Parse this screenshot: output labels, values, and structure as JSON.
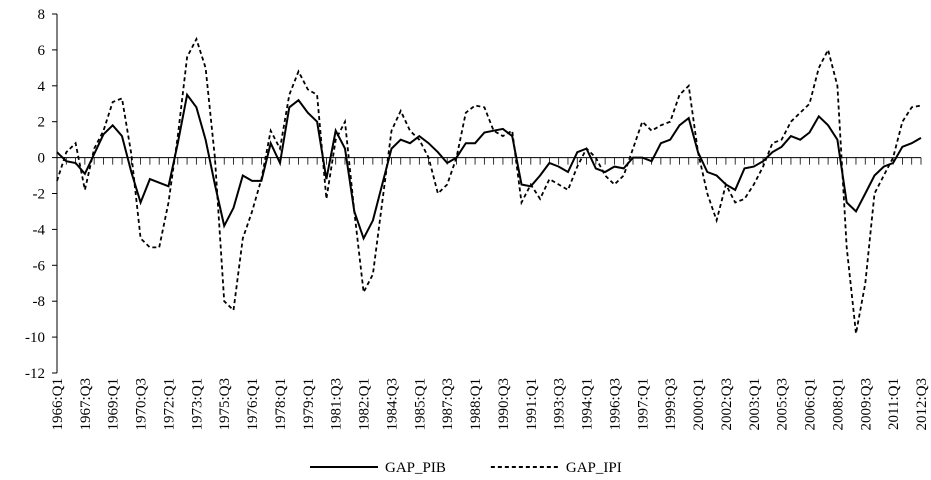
{
  "chart_data": {
    "type": "line",
    "categories": [
      "1966:Q1",
      null,
      null,
      "1967:Q3",
      null,
      null,
      "1969:Q1",
      null,
      null,
      "1970:Q3",
      null,
      null,
      "1972:Q1",
      null,
      null,
      "1973:Q1",
      null,
      null,
      "1975:Q3",
      null,
      null,
      "1976:Q1",
      null,
      null,
      "1978:Q1",
      null,
      null,
      "1979:Q1",
      null,
      null,
      "1981:Q3",
      null,
      null,
      "1982:Q1",
      null,
      null,
      "1984:Q3",
      null,
      null,
      "1985:Q1",
      null,
      null,
      "1987:Q3",
      null,
      null,
      "1988:Q1",
      null,
      null,
      "1990:Q3",
      null,
      null,
      "1991:Q1",
      null,
      null,
      "1993:Q3",
      null,
      null,
      "1994:Q1",
      null,
      null,
      "1996:Q3",
      null,
      null,
      "1997:Q1",
      null,
      null,
      "1999:Q3",
      null,
      null,
      "2000:Q1",
      null,
      null,
      "2002:Q3",
      null,
      null,
      "2003:Q1",
      null,
      null,
      "2005:Q3",
      null,
      null,
      "2006:Q1",
      null,
      null,
      "2008:Q1",
      null,
      null,
      "2009:Q3",
      null,
      null,
      "2011:Q1",
      null,
      null,
      "2012:Q3"
    ],
    "series": [
      {
        "name": "GAP_PIB",
        "color": "#000000",
        "dash": "solid",
        "values": [
          0.3,
          -0.2,
          -0.3,
          -0.9,
          0.2,
          1.3,
          1.8,
          1.2,
          -0.8,
          -2.5,
          -1.2,
          -1.4,
          -1.6,
          0.8,
          3.5,
          2.8,
          1.0,
          -1.5,
          -3.8,
          -2.8,
          -1.0,
          -1.3,
          -1.3,
          0.8,
          -0.3,
          2.8,
          3.2,
          2.5,
          2.0,
          -1.2,
          1.5,
          0.5,
          -3.0,
          -4.5,
          -3.5,
          -1.5,
          0.5,
          1.0,
          0.8,
          1.2,
          0.8,
          0.3,
          -0.3,
          0,
          0.8,
          0.8,
          1.4,
          1.5,
          1.6,
          1.2,
          -1.5,
          -1.6,
          -1.0,
          -0.3,
          -0.5,
          -0.8,
          0.3,
          0.5,
          -0.6,
          -0.8,
          -0.5,
          -0.6,
          0,
          0,
          -0.2,
          0.8,
          1.0,
          1.8,
          2.2,
          0.3,
          -0.8,
          -1.0,
          -1.5,
          -1.8,
          -0.6,
          -0.5,
          -0.2,
          0.3,
          0.6,
          1.2,
          1.0,
          1.4,
          2.3,
          1.8,
          1.0,
          -2.5,
          -3.0,
          -2.0,
          -1.0,
          -0.5,
          -0.3,
          0.6,
          0.8,
          1.1
        ]
      },
      {
        "name": "GAP_IPI",
        "color": "#000000",
        "dash": "dashed",
        "values": [
          -1.3,
          0.3,
          0.8,
          -1.8,
          0.5,
          1.5,
          3.1,
          3.3,
          0.2,
          -4.5,
          -5.0,
          -5.0,
          -2.5,
          1.2,
          5.6,
          6.6,
          5.0,
          0,
          -8.0,
          -8.5,
          -4.5,
          -3.0,
          -1.2,
          1.5,
          0.5,
          3.5,
          4.8,
          3.8,
          3.5,
          -2.3,
          1.0,
          2.0,
          -3.0,
          -7.5,
          -6.5,
          -2.5,
          1.5,
          2.6,
          1.5,
          1.0,
          0,
          -2.0,
          -1.5,
          0,
          2.5,
          2.9,
          2.8,
          1.5,
          1.2,
          1.5,
          -2.5,
          -1.5,
          -2.3,
          -1.2,
          -1.5,
          -1.8,
          -0.5,
          0.5,
          0,
          -1.0,
          -1.5,
          -1.0,
          0.5,
          2.0,
          1.5,
          1.8,
          2.0,
          3.5,
          4.0,
          0.3,
          -2.0,
          -3.5,
          -1.5,
          -2.5,
          -2.3,
          -1.5,
          -0.5,
          0.8,
          1.0,
          2.0,
          2.5,
          3.0,
          5.0,
          6.0,
          4.0,
          -5.0,
          -9.8,
          -7.0,
          -2.0,
          -1.0,
          0,
          2.0,
          2.8,
          2.9
        ]
      }
    ],
    "ylim": [
      -12,
      8
    ],
    "yticks": [
      -12,
      -10,
      -8,
      -6,
      -4,
      -2,
      0,
      2,
      4,
      6,
      8
    ],
    "grid": false,
    "legend": "bottom"
  }
}
